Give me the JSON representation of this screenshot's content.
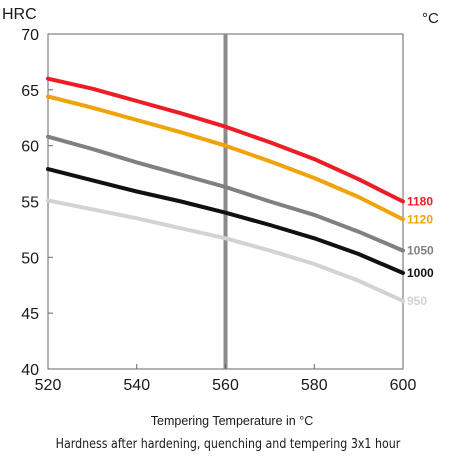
{
  "caption": "Hardness after hardening, quenching and tempering  3x1 hour",
  "chart_data": {
    "type": "line",
    "ylabel": "HRC",
    "y2label": "°C",
    "xlabel": "Tempering Temperature in °C",
    "xlim": [
      520,
      600
    ],
    "ylim": [
      40,
      70
    ],
    "x_ticks": [
      "520",
      "540",
      "560",
      "580",
      "600"
    ],
    "y_ticks": [
      "40",
      "45",
      "50",
      "55",
      "60",
      "65",
      "70"
    ],
    "grid": false,
    "reference_line_x": 560,
    "x": [
      520,
      530,
      540,
      550,
      560,
      570,
      580,
      590,
      600
    ],
    "series": [
      {
        "name": "1180",
        "color": "#ee1c24",
        "values": [
          66.0,
          65.1,
          64.0,
          62.9,
          61.7,
          60.3,
          58.8,
          57.0,
          55.0
        ]
      },
      {
        "name": "1120",
        "color": "#f0a30a",
        "values": [
          64.4,
          63.4,
          62.3,
          61.2,
          60.0,
          58.6,
          57.1,
          55.4,
          53.4
        ]
      },
      {
        "name": "1050",
        "color": "#808080",
        "values": [
          60.8,
          59.7,
          58.5,
          57.4,
          56.3,
          55.0,
          53.8,
          52.3,
          50.6
        ]
      },
      {
        "name": "1000",
        "color": "#111111",
        "values": [
          57.9,
          56.9,
          55.9,
          55.0,
          54.0,
          52.9,
          51.7,
          50.3,
          48.6
        ]
      },
      {
        "name": "950",
        "color": "#d3d3d3",
        "values": [
          55.1,
          54.3,
          53.5,
          52.6,
          51.7,
          50.6,
          49.4,
          47.9,
          46.1
        ]
      }
    ]
  }
}
